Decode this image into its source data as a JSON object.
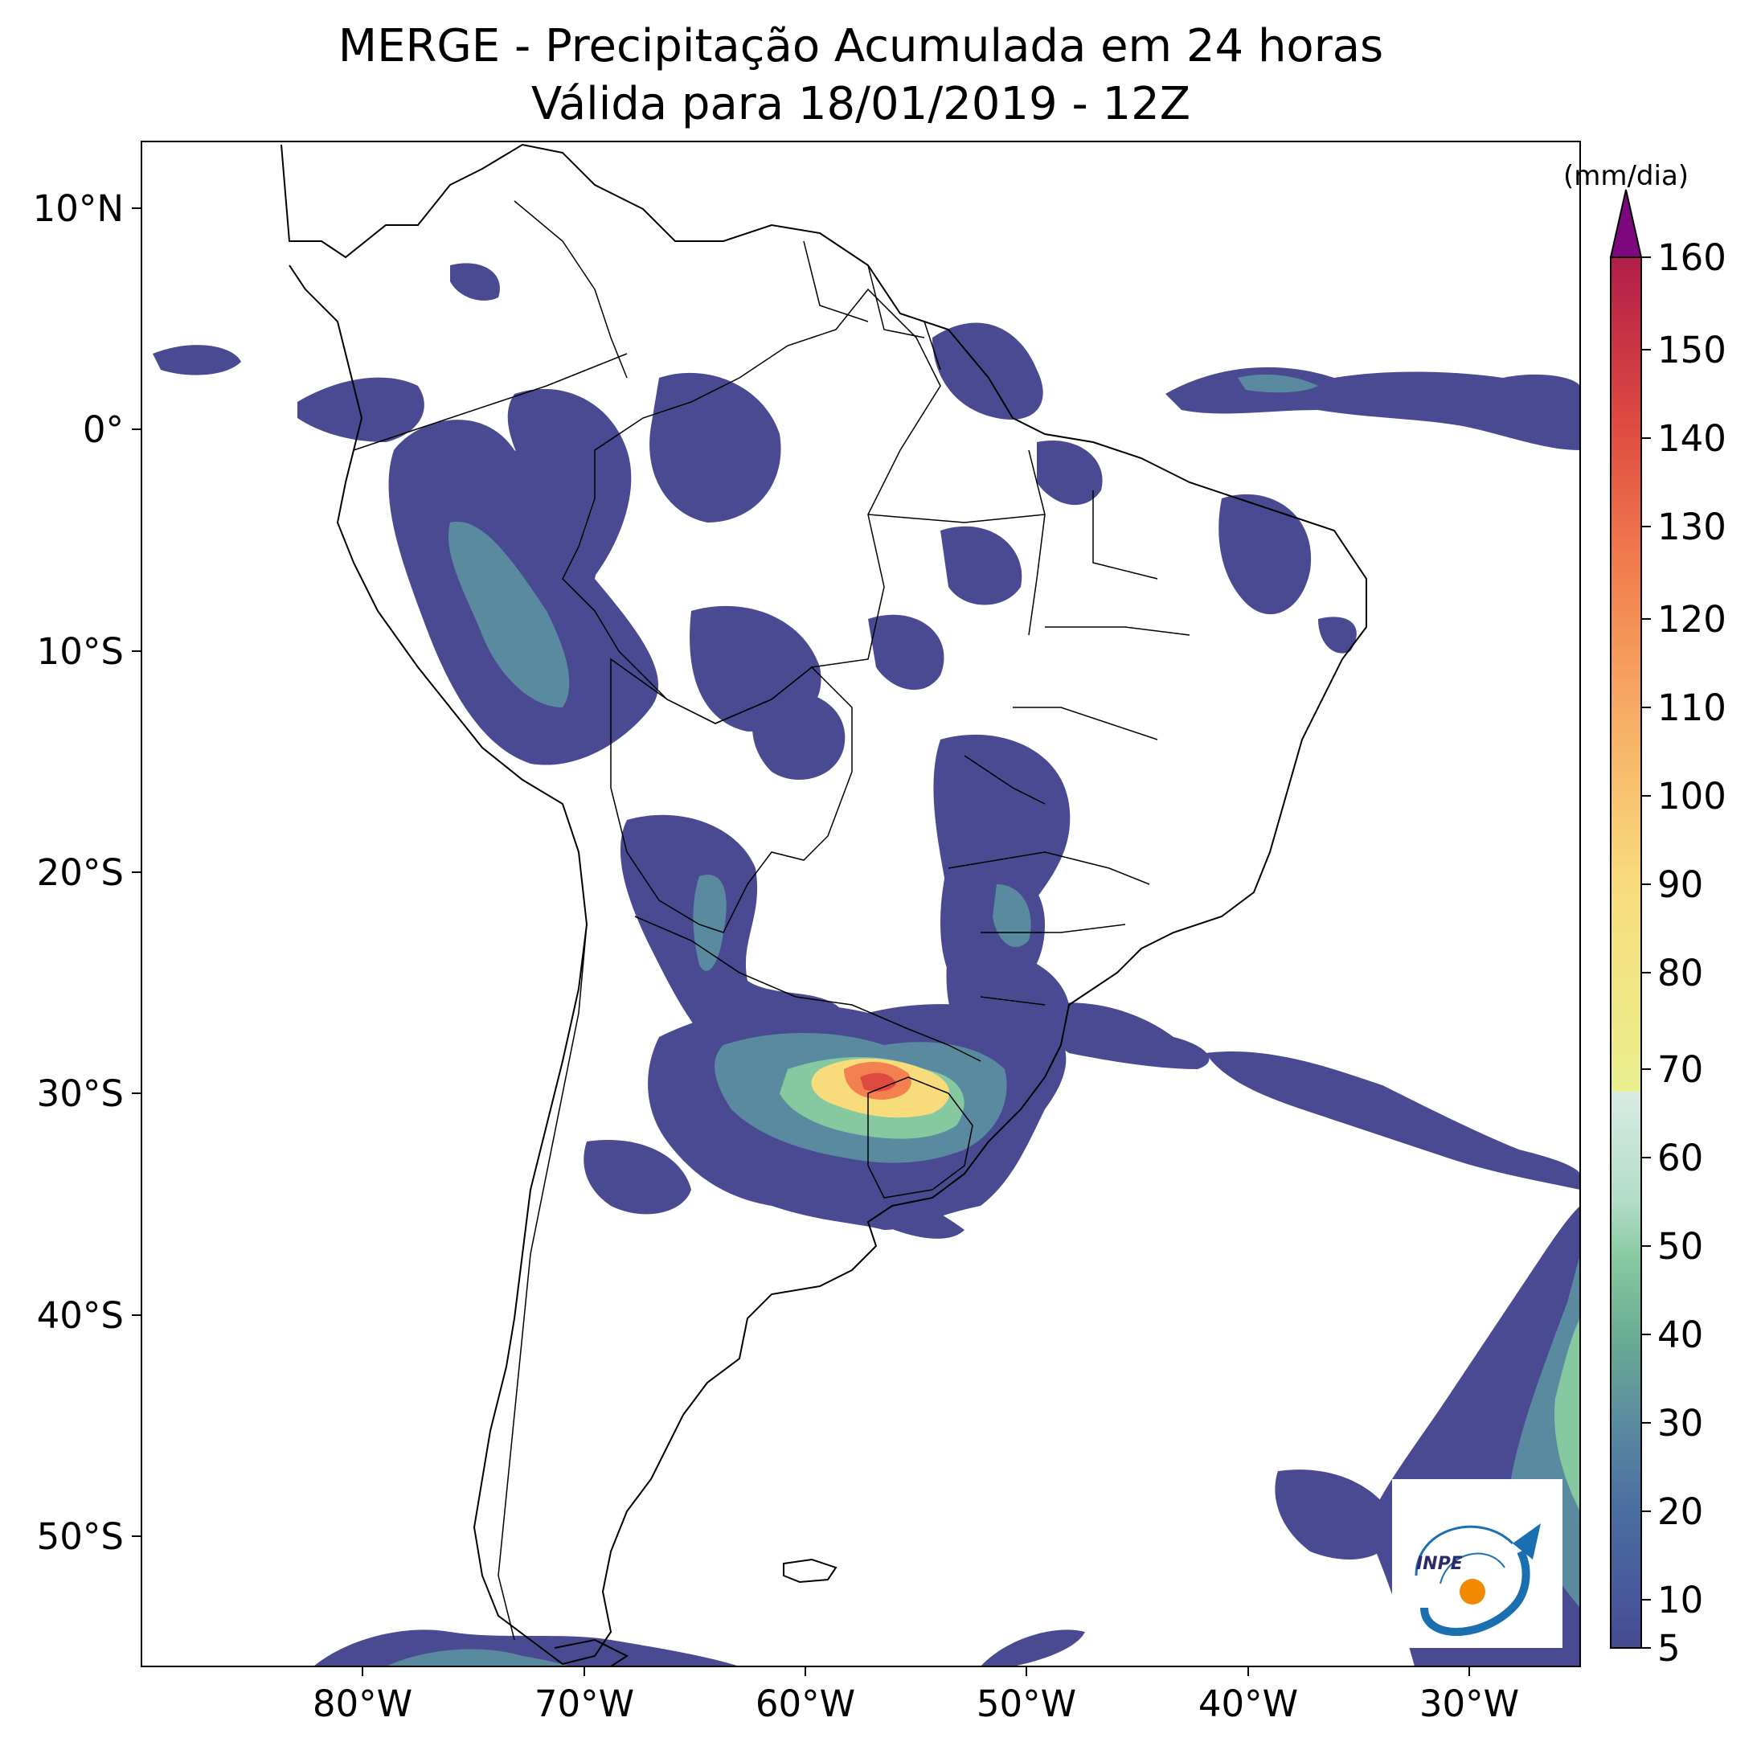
{
  "title": {
    "line1": "MERGE - Precipitação Acumulada em 24 horas",
    "line2": "Válida para 18/01/2019 - 12Z"
  },
  "axes": {
    "lat_ticks": [
      "10°N",
      "0°",
      "10°S",
      "20°S",
      "30°S",
      "40°S",
      "50°S"
    ],
    "lon_ticks": [
      "80°W",
      "70°W",
      "60°W",
      "50°W",
      "40°W",
      "30°W"
    ],
    "lon_range": [
      -90,
      -25
    ],
    "lat_range": [
      -56,
      13
    ]
  },
  "colorbar": {
    "unit": "(mm/dia)",
    "ticks": [
      "5",
      "10",
      "20",
      "30",
      "40",
      "50",
      "60",
      "70",
      "80",
      "90",
      "100",
      "110",
      "120",
      "130",
      "140",
      "150",
      "160"
    ],
    "extend": "max",
    "colors": [
      "#4a4a92",
      "#45599a",
      "#4a6fa0",
      "#5a8aa0",
      "#6aaa96",
      "#86c9a0",
      "#bde2cf",
      "#e9ef92",
      "#f9d97b",
      "#f7a663",
      "#f27e4e",
      "#e0473d",
      "#b3184b",
      "#7d077c"
    ]
  },
  "map": {
    "projection": "PlateCarree",
    "features": [
      "coastlines",
      "country borders",
      "brazilian state borders"
    ],
    "max_precip_region": "southern Brazil / Uruguay / NE Argentina",
    "max_precip_value_approx": 140
  },
  "logo": {
    "text": "INPE"
  }
}
